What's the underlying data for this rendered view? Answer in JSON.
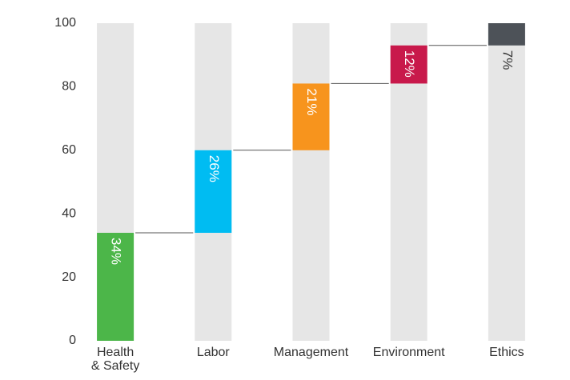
{
  "chart_data": {
    "type": "waterfall",
    "categories": [
      "Health\n& Safety",
      "Labor",
      "Management",
      "Environment",
      "Ethics"
    ],
    "values": [
      34,
      26,
      21,
      12,
      7
    ],
    "value_labels": [
      "34%",
      "26%",
      "21%",
      "12%",
      "7%"
    ],
    "colors": [
      "#4cb649",
      "#00bcf2",
      "#f7941d",
      "#c8194b",
      "#4d5258"
    ],
    "ylim": [
      0,
      100
    ],
    "yticks": [
      0,
      20,
      40,
      60,
      80,
      100
    ]
  }
}
